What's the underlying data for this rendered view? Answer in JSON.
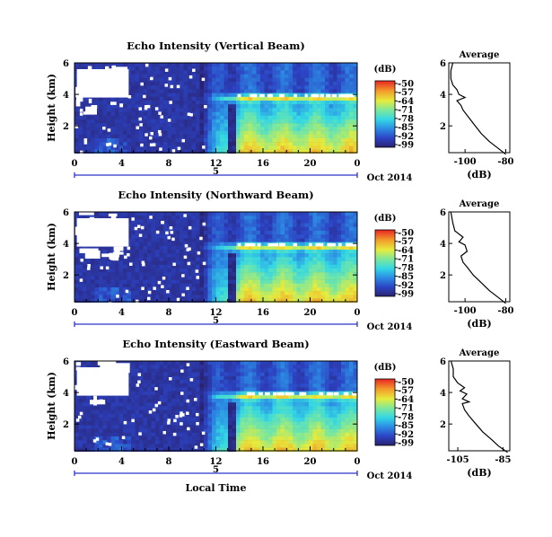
{
  "chart_data": [
    {
      "type": "heatmap",
      "title": "Echo Intensity (Vertical Beam)",
      "ylabel": "Height (km)",
      "xlabel": "",
      "x_ticks": [
        "0",
        "4",
        "8",
        "12",
        "16",
        "20",
        "0"
      ],
      "y_ticks": [
        "2",
        "4",
        "6"
      ],
      "xlim": [
        0,
        24
      ],
      "ylim": [
        0.3,
        6.0
      ],
      "date_day": "5",
      "date_label": "Oct 2014",
      "colorbar": {
        "unit": "(dB)",
        "ticks": [
          "-50",
          "-57",
          "-64",
          "-71",
          "-78",
          "-85",
          "-92",
          "-99"
        ]
      },
      "inversion_layer_km": 3.9,
      "profile": {
        "title": "Average",
        "xlabel": "(dB)",
        "x_ticks": [
          "-100",
          "-80"
        ],
        "xlim": [
          -108,
          -78
        ],
        "y_ticks": [
          "2",
          "4",
          "6"
        ],
        "points": [
          [
            -80,
            0.2
          ],
          [
            -84,
            0.6
          ],
          [
            -88,
            1.0
          ],
          [
            -92,
            1.5
          ],
          [
            -95,
            2.0
          ],
          [
            -98,
            2.5
          ],
          [
            -101,
            3.0
          ],
          [
            -102,
            3.3
          ],
          [
            -104,
            3.6
          ],
          [
            -100,
            3.8
          ],
          [
            -103,
            4.0
          ],
          [
            -104,
            4.3
          ],
          [
            -106,
            4.6
          ],
          [
            -107,
            5.0
          ],
          [
            -107,
            5.5
          ],
          [
            -106,
            6.0
          ]
        ]
      }
    },
    {
      "type": "heatmap",
      "title": "Echo Intensity (Northward Beam)",
      "ylabel": "Height (km)",
      "xlabel": "",
      "x_ticks": [
        "0",
        "4",
        "8",
        "12",
        "16",
        "20",
        "0"
      ],
      "y_ticks": [
        "2",
        "4",
        "6"
      ],
      "xlim": [
        0,
        24
      ],
      "ylim": [
        0.3,
        6.0
      ],
      "date_day": "5",
      "date_label": "Oct 2014",
      "colorbar": {
        "unit": "(dB)",
        "ticks": [
          "-50",
          "-57",
          "-64",
          "-71",
          "-78",
          "-85",
          "-92",
          "-99"
        ]
      },
      "inversion_layer_km": 3.9,
      "profile": {
        "title": "Average",
        "xlabel": "(dB)",
        "x_ticks": [
          "-100",
          "-80"
        ],
        "xlim": [
          -108,
          -78
        ],
        "y_ticks": [
          "2",
          "4",
          "6"
        ],
        "points": [
          [
            -80,
            0.2
          ],
          [
            -84,
            0.6
          ],
          [
            -88,
            1.0
          ],
          [
            -92,
            1.5
          ],
          [
            -96,
            2.0
          ],
          [
            -99,
            2.5
          ],
          [
            -101,
            2.8
          ],
          [
            -102,
            3.2
          ],
          [
            -99,
            3.5
          ],
          [
            -100,
            3.9
          ],
          [
            -103,
            4.1
          ],
          [
            -101,
            4.4
          ],
          [
            -105,
            4.8
          ],
          [
            -106,
            5.3
          ],
          [
            -107,
            6.0
          ]
        ]
      }
    },
    {
      "type": "heatmap",
      "title": "Echo Intensity (Eastward Beam)",
      "ylabel": "Height (km)",
      "xlabel": "Local Time",
      "x_ticks": [
        "0",
        "4",
        "8",
        "12",
        "16",
        "20",
        "0"
      ],
      "y_ticks": [
        "2",
        "4",
        "6"
      ],
      "xlim": [
        0,
        24
      ],
      "ylim": [
        0.3,
        6.0
      ],
      "date_day": "5",
      "date_label": "Oct 2014",
      "colorbar": {
        "unit": "(dB)",
        "ticks": [
          "-50",
          "-57",
          "-64",
          "-71",
          "-78",
          "-85",
          "-92",
          "-99"
        ]
      },
      "inversion_layer_km": 3.9,
      "profile": {
        "title": "Average",
        "xlabel": "(dB)",
        "x_ticks": [
          "-105",
          "-85"
        ],
        "xlim": [
          -109,
          -82
        ],
        "y_ticks": [
          "2",
          "4",
          "6"
        ],
        "points": [
          [
            -83,
            0.2
          ],
          [
            -87,
            0.6
          ],
          [
            -90,
            1.0
          ],
          [
            -94,
            1.5
          ],
          [
            -97,
            2.0
          ],
          [
            -100,
            2.5
          ],
          [
            -102,
            2.9
          ],
          [
            -103,
            3.3
          ],
          [
            -100,
            3.4
          ],
          [
            -103,
            3.6
          ],
          [
            -101,
            3.9
          ],
          [
            -104,
            4.1
          ],
          [
            -102,
            4.3
          ],
          [
            -105,
            4.6
          ],
          [
            -107,
            5.0
          ],
          [
            -107,
            5.5
          ],
          [
            -108,
            6.0
          ]
        ]
      }
    }
  ]
}
